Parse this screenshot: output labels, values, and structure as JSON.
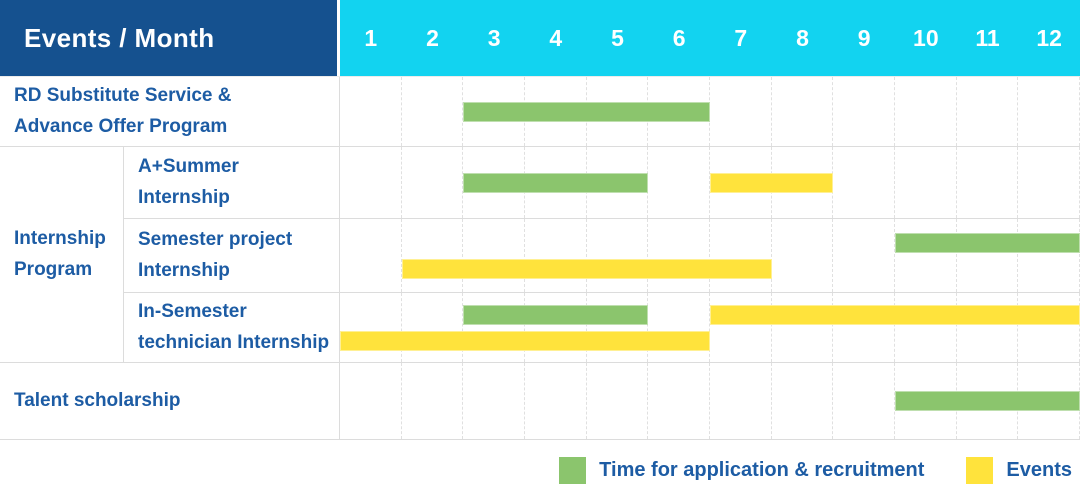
{
  "title_cell": "Events / Month",
  "months": [
    "1",
    "2",
    "3",
    "4",
    "5",
    "6",
    "7",
    "8",
    "9",
    "10",
    "11",
    "12"
  ],
  "colors": {
    "header_bg": "#15518F",
    "months_bg": "#12D3F0",
    "application": "#8BC56D",
    "events": "#FFE33C",
    "label_text": "#1D5CA4"
  },
  "rows": [
    {
      "kind": "full",
      "label_lines": [
        "RD Substitute Service &",
        "Advance Offer Program"
      ],
      "bar_lines": [
        [
          {
            "kind": "application",
            "start": 3,
            "end": 6
          }
        ]
      ]
    },
    {
      "kind": "sub",
      "label_lines": [
        "A+Summer",
        "Internship"
      ],
      "bar_lines": [
        [
          {
            "kind": "application",
            "start": 3,
            "end": 5
          },
          {
            "kind": "events",
            "start": 7,
            "end": 8
          }
        ]
      ]
    },
    {
      "kind": "sub",
      "label_lines": [
        "Semester project",
        "Internship"
      ],
      "bar_lines": [
        [
          {
            "kind": "application",
            "start": 10,
            "end": 12
          }
        ],
        [
          {
            "kind": "events",
            "start": 2,
            "end": 7
          }
        ]
      ]
    },
    {
      "kind": "sub",
      "label_lines": [
        "In-Semester",
        "technician Internship"
      ],
      "bar_lines": [
        [
          {
            "kind": "application",
            "start": 3,
            "end": 5
          },
          {
            "kind": "events",
            "start": 7,
            "end": 12
          }
        ],
        [
          {
            "kind": "events",
            "start": 1,
            "end": 6
          }
        ]
      ]
    },
    {
      "kind": "full",
      "label_lines": [
        "Talent scholarship"
      ],
      "bar_lines": [
        [
          {
            "kind": "application",
            "start": 10,
            "end": 12
          }
        ]
      ]
    }
  ],
  "group": {
    "label_lines": [
      "Internship",
      "Program"
    ],
    "from_row": 2,
    "to_row": 4
  },
  "legend": [
    {
      "kind": "application",
      "label": "Time for application & recruitment"
    },
    {
      "kind": "events",
      "label": "Events"
    }
  ],
  "chart_data": {
    "type": "bar",
    "subtype": "gantt",
    "title": "Events / Month",
    "x_axis": {
      "label": "Month",
      "ticks": [
        1,
        2,
        3,
        4,
        5,
        6,
        7,
        8,
        9,
        10,
        11,
        12
      ],
      "range": [
        1,
        12
      ],
      "grid": true
    },
    "legend_position": "bottom-right",
    "legend": [
      {
        "name": "Time for application & recruitment",
        "color": "#8BC56D"
      },
      {
        "name": "Events",
        "color": "#FFE33C"
      }
    ],
    "tasks": [
      {
        "name": "RD Substitute Service & Advance Offer Program",
        "group": null,
        "bars": [
          {
            "series": "Time for application & recruitment",
            "start_month": 3,
            "end_month": 6
          }
        ]
      },
      {
        "name": "A+Summer Internship",
        "group": "Internship Program",
        "bars": [
          {
            "series": "Time for application & recruitment",
            "start_month": 3,
            "end_month": 5
          },
          {
            "series": "Events",
            "start_month": 7,
            "end_month": 8
          }
        ]
      },
      {
        "name": "Semester project Internship",
        "group": "Internship Program",
        "bars": [
          {
            "series": "Time for application & recruitment",
            "start_month": 10,
            "end_month": 12
          },
          {
            "series": "Events",
            "start_month": 2,
            "end_month": 7
          }
        ]
      },
      {
        "name": "In-Semester technician Internship",
        "group": "Internship Program",
        "bars": [
          {
            "series": "Time for application & recruitment",
            "start_month": 3,
            "end_month": 5
          },
          {
            "series": "Events",
            "start_month": 7,
            "end_month": 12
          },
          {
            "series": "Events",
            "start_month": 1,
            "end_month": 6
          }
        ]
      },
      {
        "name": "Talent scholarship",
        "group": null,
        "bars": [
          {
            "series": "Time for application & recruitment",
            "start_month": 10,
            "end_month": 12
          }
        ]
      }
    ]
  }
}
